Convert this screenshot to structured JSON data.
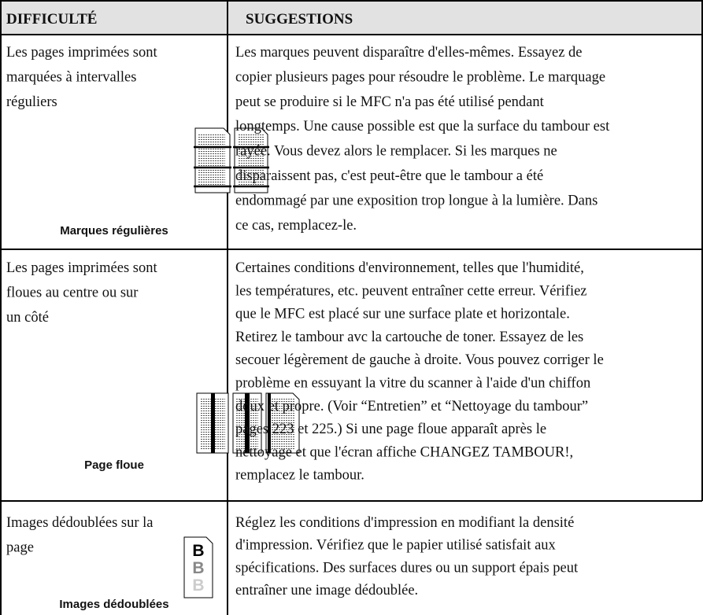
{
  "header": {
    "difficulty": "DIFFICULTÉ",
    "suggestions": "SUGGESTIONS"
  },
  "rows": [
    {
      "problem": [
        "Les pages imprimées sont",
        "marquées à intervalles",
        "réguliers"
      ],
      "caption": "Marques régulières",
      "suggestion": [
        "Les marques peuvent disparaître d'elles-mêmes. Essayez de",
        "copier plusieurs pages pour résoudre le problème. Le marquage",
        "peut se produire si le MFC n'a pas été utilisé pendant",
        "longtemps. Une cause possible est que la surface du tambour est",
        "rayée. Vous devez alors le remplacer.  Si les marques ne",
        "disparaissent pas, c'est peut-être que le tambour a été",
        "endommagé par une exposition trop longue à la lumière. Dans",
        "ce cas, remplacez-le."
      ]
    },
    {
      "problem": [
        "Les pages imprimées sont",
        "floues au centre ou sur",
        "un côté"
      ],
      "caption": "Page floue",
      "suggestion": [
        "Certaines conditions d'environnement, telles que l'humidité,",
        "les températures, etc. peuvent entraîner cette erreur.  Vérifiez",
        "que le MFC est placé sur une surface plate et horizontale.",
        "Retirez le tambour avc la cartouche de toner. Essayez de les",
        "secouer légèrement de gauche à droite. Vous pouvez corriger le",
        "problème en essuyant la vitre du scanner à l'aide d'un chiffon",
        "doux et propre. (Voir “Entretien” et “Nettoyage du tambour”",
        "pages 223 et 225.) Si une page floue apparaît après le",
        "nettoyage et que l'écran affiche CHANGEZ TAMBOUR!,",
        "remplacez le tambour."
      ]
    },
    {
      "problem": [
        "Images dédoublées sur la",
        "page"
      ],
      "caption": "Images dédoublées",
      "icon_letter": "B",
      "suggestion": [
        "Réglez les conditions d'impression en modifiant la densité",
        "d'impression.  Vérifiez que le papier utilisé satisfait aux",
        "spécifications.  Des surfaces dures ou un support épais peut",
        "entraîner une image dédoublée."
      ]
    }
  ]
}
